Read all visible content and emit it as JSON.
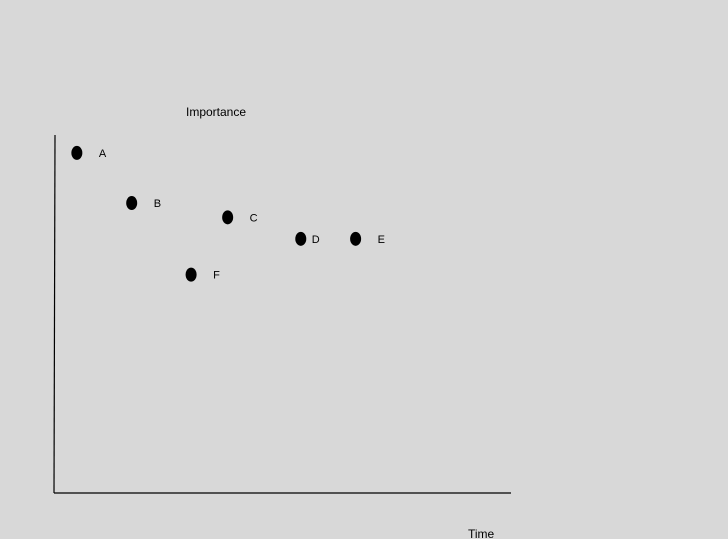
{
  "axes": {
    "y_label": "Importance",
    "x_label": "Time"
  },
  "chart_data": {
    "type": "scatter",
    "xlabel": "Time",
    "ylabel": "Importance",
    "axis_ticks": false,
    "grid": false,
    "points": [
      {
        "label": "A",
        "x": 0.05,
        "y": 0.95
      },
      {
        "label": "B",
        "x": 0.17,
        "y": 0.81
      },
      {
        "label": "C",
        "x": 0.38,
        "y": 0.77
      },
      {
        "label": "D",
        "x": 0.54,
        "y": 0.71
      },
      {
        "label": "E",
        "x": 0.66,
        "y": 0.71
      },
      {
        "label": "F",
        "x": 0.3,
        "y": 0.61
      }
    ],
    "marker_color": "#000000",
    "axis_color": "#000000"
  }
}
